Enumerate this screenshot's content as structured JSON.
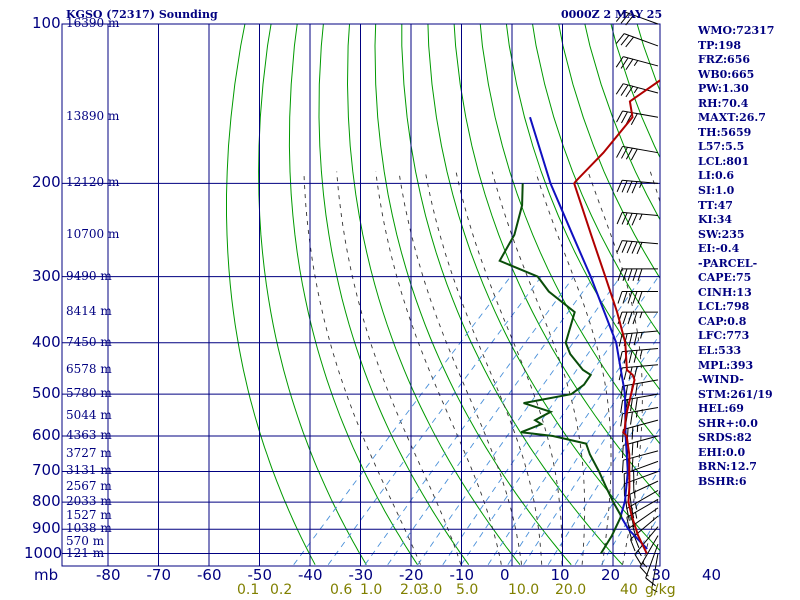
{
  "header": {
    "station_title": "KGSO (72317) Sounding",
    "time_title": "0000Z  2 MAY 25"
  },
  "indices": [
    "WMO:72317",
    "TP:198",
    "FRZ:656",
    "WB0:665",
    "PW:1.30",
    "RH:70.4",
    "MAXT:26.7",
    "TH:5659",
    "L57:5.5",
    "LCL:801",
    "LI:0.6",
    "SI:1.0",
    "TT:47",
    "KI:34",
    "SW:235",
    "EI:-0.4",
    "-PARCEL-",
    "CAPE:75",
    "CINH:13",
    "LCL:798",
    "CAP:0.8",
    "LFC:773",
    "EL:533",
    "MPL:393",
    "-WIND-",
    "STM:261/19",
    "HEL:69",
    "SHR+:0.0",
    "SRDS:82",
    "EHI:0.0",
    "BRN:12.7",
    "BSHR:6"
  ],
  "colors": {
    "grid": "#000080",
    "dry_adiabat": "#009900",
    "moist_adiabat": "#333333",
    "mixing_ratio": "#4a90d9",
    "temperature": "#b00000",
    "dewpoint": "#0a4d0a",
    "parcel": "#1010c0",
    "mixing_label": "#808000",
    "text": "#000080",
    "wind": "#000000"
  },
  "chart_data": {
    "type": "skew-t",
    "pressure_levels": [
      100,
      200,
      300,
      400,
      500,
      600,
      700,
      800,
      900,
      1000
    ],
    "pressure_range": [
      1000,
      100
    ],
    "pressure_unit": "mb",
    "temp_ticks": [
      -80,
      -70,
      -60,
      -50,
      -40,
      -30,
      -20,
      -10,
      0,
      10,
      20,
      30,
      40
    ],
    "temp_unit": "C",
    "height_labels": [
      {
        "p": 100,
        "text": "16390 m"
      },
      {
        "p": 150,
        "text": "13890 m"
      },
      {
        "p": 200,
        "text": "12120 m"
      },
      {
        "p": 250,
        "text": "10700 m"
      },
      {
        "p": 300,
        "text": "9490 m"
      },
      {
        "p": 350,
        "text": "8414 m"
      },
      {
        "p": 400,
        "text": "7450 m"
      },
      {
        "p": 450,
        "text": "6578 m"
      },
      {
        "p": 500,
        "text": "5780 m"
      },
      {
        "p": 550,
        "text": "5044 m"
      },
      {
        "p": 600,
        "text": "4363 m"
      },
      {
        "p": 650,
        "text": "3727 m"
      },
      {
        "p": 700,
        "text": "3131 m"
      },
      {
        "p": 750,
        "text": "2567 m"
      },
      {
        "p": 800,
        "text": "2033 m"
      },
      {
        "p": 850,
        "text": "1527 m"
      },
      {
        "p": 900,
        "text": "1038 m"
      },
      {
        "p": 950,
        "text": "570 m"
      },
      {
        "p": 1000,
        "text": "121 m"
      }
    ],
    "mixing_ratio_labels": [
      "0.1",
      "0.2",
      "0.6",
      "1.0",
      "2.0",
      "3.0",
      "5.0",
      "10.0",
      "20.0",
      "40",
      "g/kg"
    ],
    "mixing_ratio_values": [
      0.1,
      0.2,
      0.6,
      1.0,
      2.0,
      3.0,
      5.0,
      10.0,
      20.0,
      40.0
    ],
    "temperature": [
      {
        "p": 1000,
        "t": 26.7
      },
      {
        "p": 925,
        "t": 21.6
      },
      {
        "p": 850,
        "t": 16.7
      },
      {
        "p": 800,
        "t": 13.4
      },
      {
        "p": 750,
        "t": 10.8
      },
      {
        "p": 700,
        "t": 7.8
      },
      {
        "p": 650,
        "t": 4.6
      },
      {
        "p": 600,
        "t": 0.6
      },
      {
        "p": 590,
        "t": -0.8
      },
      {
        "p": 585,
        "t": -0.9
      },
      {
        "p": 550,
        "t": -3.3
      },
      {
        "p": 500,
        "t": -6.4
      },
      {
        "p": 470,
        "t": -8.4
      },
      {
        "p": 460,
        "t": -9.7
      },
      {
        "p": 450,
        "t": -11.8
      },
      {
        "p": 400,
        "t": -17.2
      },
      {
        "p": 350,
        "t": -24.6
      },
      {
        "p": 300,
        "t": -33.6
      },
      {
        "p": 250,
        "t": -44.3
      },
      {
        "p": 200,
        "t": -57.3
      },
      {
        "p": 198,
        "t": -57.4
      },
      {
        "p": 175,
        "t": -57.3
      },
      {
        "p": 150,
        "t": -58.2
      },
      {
        "p": 140,
        "t": -61.7
      },
      {
        "p": 125,
        "t": -59.2
      },
      {
        "p": 100,
        "t": -61.7
      }
    ],
    "dewpoint": [
      {
        "p": 1000,
        "t": 17.6
      },
      {
        "p": 925,
        "t": 16.4
      },
      {
        "p": 850,
        "t": 14.6
      },
      {
        "p": 800,
        "t": 10.4
      },
      {
        "p": 750,
        "t": 6.2
      },
      {
        "p": 700,
        "t": 1.8
      },
      {
        "p": 650,
        "t": -3.2
      },
      {
        "p": 620,
        "t": -6.0
      },
      {
        "p": 600,
        "t": -14.0
      },
      {
        "p": 590,
        "t": -21.0
      },
      {
        "p": 570,
        "t": -18.5
      },
      {
        "p": 560,
        "t": -20.5
      },
      {
        "p": 540,
        "t": -19.0
      },
      {
        "p": 520,
        "t": -26.0
      },
      {
        "p": 500,
        "t": -18.2
      },
      {
        "p": 480,
        "t": -17.5
      },
      {
        "p": 460,
        "t": -18.0
      },
      {
        "p": 450,
        "t": -20.5
      },
      {
        "p": 420,
        "t": -26.0
      },
      {
        "p": 400,
        "t": -29.0
      },
      {
        "p": 350,
        "t": -33.0
      },
      {
        "p": 320,
        "t": -42.0
      },
      {
        "p": 300,
        "t": -47.0
      },
      {
        "p": 280,
        "t": -57.5
      },
      {
        "p": 250,
        "t": -59.5
      },
      {
        "p": 220,
        "t": -63.5
      },
      {
        "p": 200,
        "t": -67.5
      }
    ],
    "parcel": [
      {
        "p": 980,
        "t": 25.9
      },
      {
        "p": 900,
        "t": 18.5
      },
      {
        "p": 850,
        "t": 14.5
      },
      {
        "p": 798,
        "t": 12.6
      },
      {
        "p": 700,
        "t": 7.5
      },
      {
        "p": 600,
        "t": 0.4
      },
      {
        "p": 500,
        "t": -7.6
      },
      {
        "p": 400,
        "t": -19.0
      },
      {
        "p": 300,
        "t": -36.5
      },
      {
        "p": 250,
        "t": -48.0
      },
      {
        "p": 200,
        "t": -62.0
      },
      {
        "p": 150,
        "t": -78.5
      }
    ],
    "wind_barbs": [
      {
        "p": 1000,
        "dir": 190,
        "spd": 5
      },
      {
        "p": 960,
        "dir": 200,
        "spd": 10
      },
      {
        "p": 925,
        "dir": 210,
        "spd": 15
      },
      {
        "p": 890,
        "dir": 220,
        "spd": 15
      },
      {
        "p": 850,
        "dir": 230,
        "spd": 20
      },
      {
        "p": 820,
        "dir": 235,
        "spd": 20
      },
      {
        "p": 790,
        "dir": 240,
        "spd": 25
      },
      {
        "p": 760,
        "dir": 240,
        "spd": 25
      },
      {
        "p": 730,
        "dir": 245,
        "spd": 25
      },
      {
        "p": 700,
        "dir": 250,
        "spd": 30
      },
      {
        "p": 670,
        "dir": 250,
        "spd": 30
      },
      {
        "p": 640,
        "dir": 255,
        "spd": 30
      },
      {
        "p": 600,
        "dir": 255,
        "spd": 35
      },
      {
        "p": 560,
        "dir": 255,
        "spd": 35
      },
      {
        "p": 530,
        "dir": 260,
        "spd": 35
      },
      {
        "p": 500,
        "dir": 260,
        "spd": 40
      },
      {
        "p": 470,
        "dir": 260,
        "spd": 40
      },
      {
        "p": 440,
        "dir": 265,
        "spd": 40
      },
      {
        "p": 410,
        "dir": 265,
        "spd": 45
      },
      {
        "p": 380,
        "dir": 265,
        "spd": 45
      },
      {
        "p": 350,
        "dir": 270,
        "spd": 45
      },
      {
        "p": 320,
        "dir": 270,
        "spd": 50
      },
      {
        "p": 290,
        "dir": 270,
        "spd": 50
      },
      {
        "p": 260,
        "dir": 275,
        "spd": 50
      },
      {
        "p": 230,
        "dir": 275,
        "spd": 45
      },
      {
        "p": 200,
        "dir": 275,
        "spd": 45
      },
      {
        "p": 175,
        "dir": 280,
        "spd": 40
      },
      {
        "p": 150,
        "dir": 280,
        "spd": 40
      },
      {
        "p": 135,
        "dir": 285,
        "spd": 35
      },
      {
        "p": 120,
        "dir": 285,
        "spd": 35
      },
      {
        "p": 110,
        "dir": 290,
        "spd": 30
      },
      {
        "p": 100,
        "dir": 290,
        "spd": 30
      }
    ]
  }
}
